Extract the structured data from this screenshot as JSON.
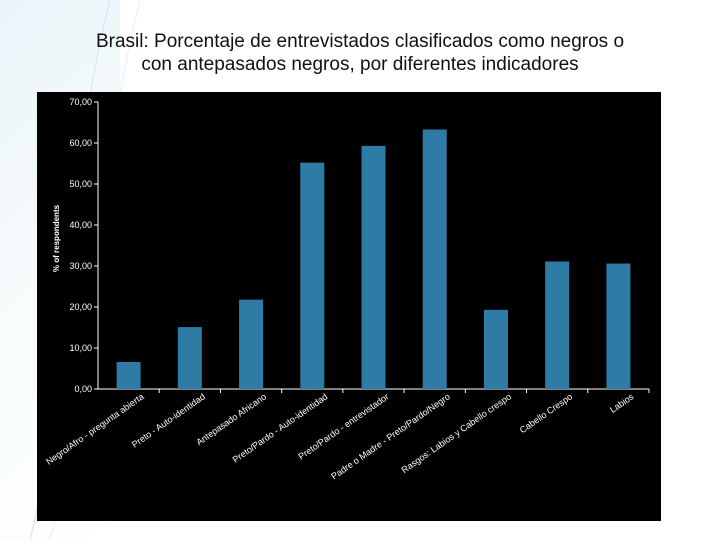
{
  "slide": {
    "title": "Brasil: Porcentaje de entrevistados clasificados como negros o con antepasados negros, por diferentes indicadores"
  },
  "chart_data": {
    "type": "bar",
    "title": "Brasil: Porcentaje de entrevistados clasificados como negros o con antepasados negros, por diferentes indicadores",
    "xlabel": "",
    "ylabel": "% of respondents",
    "ylim": [
      0,
      70
    ],
    "yticks": [
      "0,00",
      "10,00",
      "20,00",
      "30,00",
      "40,00",
      "50,00",
      "60,00",
      "70,00"
    ],
    "grid": false,
    "legend": "none",
    "bar_color": "#2e7ca6",
    "background_color": "#000000",
    "text_color": "#ffffff",
    "categories": [
      "Negro/Afro - pregunta abierta",
      "Preto - Auto-identidad",
      "Antepasado Africano",
      "Preto/Pardo - Auto-identidad",
      "Preto/Pardo - entrevistador",
      "Padre o Madre - Preto/Pardo/Negro",
      "Rasgos: Labios y Cabello crespo",
      "Cabello Crespo",
      "Labios"
    ],
    "values": [
      6.6,
      15.1,
      21.8,
      55.2,
      59.3,
      63.3,
      19.3,
      31.1,
      30.6
    ]
  }
}
